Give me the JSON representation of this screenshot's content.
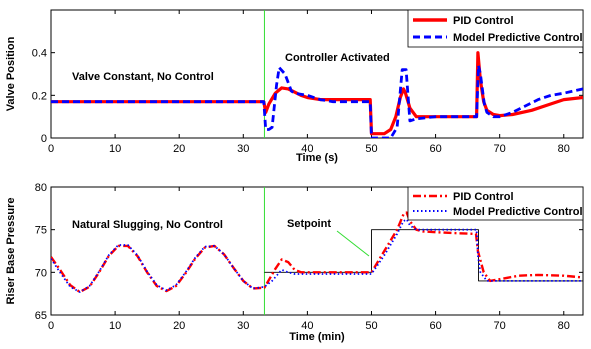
{
  "chart_data": [
    {
      "type": "line",
      "xlabel": "Time (s)",
      "ylabel": "Valve Position",
      "xlim": [
        0,
        83
      ],
      "ylim": [
        0,
        0.6
      ],
      "xticks": [
        0,
        10,
        20,
        30,
        40,
        50,
        60,
        70,
        80
      ],
      "yticks": [
        0,
        0.2,
        0.4
      ],
      "grid": false,
      "legend_position": "top-right",
      "series": [
        {
          "name": "PID Control",
          "color": "#ff0000",
          "style": "solid",
          "x": [
            0,
            33.2,
            33.5,
            34,
            35,
            36,
            37,
            38,
            39,
            40,
            42,
            44,
            46,
            48,
            49.8,
            50,
            52,
            53,
            53.8,
            54.5,
            55,
            55.3,
            56,
            57,
            58,
            60,
            62,
            64,
            66.4,
            66.6,
            67,
            67.5,
            68,
            69,
            70,
            72,
            75,
            78,
            80,
            83
          ],
          "y": [
            0.17,
            0.17,
            0.12,
            0.16,
            0.21,
            0.235,
            0.23,
            0.215,
            0.2,
            0.19,
            0.18,
            0.18,
            0.18,
            0.18,
            0.18,
            0.02,
            0.02,
            0.04,
            0.1,
            0.19,
            0.23,
            0.21,
            0.14,
            0.1,
            0.1,
            0.1,
            0.1,
            0.1,
            0.1,
            0.4,
            0.27,
            0.17,
            0.13,
            0.11,
            0.105,
            0.11,
            0.13,
            0.16,
            0.18,
            0.19
          ]
        },
        {
          "name": "Model Predictive Control",
          "color": "#0000ff",
          "style": "dashed",
          "x": [
            0,
            33.2,
            33.5,
            34,
            34.5,
            35.2,
            35.6,
            36.5,
            37.5,
            38,
            40,
            42,
            44,
            46,
            48,
            49.8,
            50,
            52,
            53,
            54,
            54.8,
            55.4,
            56,
            57,
            60,
            62,
            64,
            66.4,
            66.7,
            67,
            67.6,
            68,
            69,
            70,
            72,
            74,
            76,
            78,
            80,
            83
          ],
          "y": [
            0.17,
            0.17,
            0.04,
            0.04,
            0.05,
            0.25,
            0.33,
            0.3,
            0.22,
            0.21,
            0.2,
            0.18,
            0.17,
            0.17,
            0.17,
            0.17,
            0.0,
            0.0,
            0.0,
            0.05,
            0.32,
            0.32,
            0.08,
            0.09,
            0.1,
            0.1,
            0.1,
            0.1,
            0.34,
            0.3,
            0.16,
            0.12,
            0.1,
            0.1,
            0.12,
            0.15,
            0.18,
            0.2,
            0.21,
            0.23
          ]
        }
      ],
      "annotations": [
        "Valve Constant, No Control",
        "Controller Activated"
      ],
      "vline_x": 33.3
    },
    {
      "type": "line",
      "xlabel": "Time (min)",
      "ylabel": "Riser Base Pressure",
      "xlim": [
        0,
        83
      ],
      "ylim": [
        65,
        80
      ],
      "xticks": [
        0,
        10,
        20,
        30,
        40,
        50,
        60,
        70,
        80
      ],
      "yticks": [
        65,
        70,
        75,
        80
      ],
      "grid": false,
      "legend_position": "top-right",
      "series": [
        {
          "name": "PID Control",
          "color": "#ff0000",
          "style": "dashdot",
          "x": [
            0,
            1.5,
            3,
            4.5,
            6,
            7.5,
            9,
            10.5,
            12,
            13.5,
            15,
            16.5,
            18,
            19.5,
            21,
            22.5,
            24,
            25.5,
            27,
            28.5,
            30,
            31.5,
            33.3,
            35,
            36,
            37,
            38,
            39,
            40,
            42,
            45,
            48,
            50,
            52,
            54,
            55,
            55.5,
            56,
            57,
            58,
            60,
            63,
            66.3,
            66.6,
            67.5,
            68.5,
            70,
            73,
            76,
            80,
            83
          ],
          "y": [
            71.8,
            70.2,
            68.5,
            67.7,
            68.3,
            70.0,
            71.9,
            73.1,
            73.1,
            71.9,
            70.0,
            68.4,
            67.8,
            68.4,
            69.9,
            71.6,
            72.9,
            73.1,
            72.1,
            70.5,
            69.0,
            68.1,
            68.2,
            70.4,
            71.5,
            71.2,
            70.3,
            70.0,
            70.0,
            70.0,
            70.0,
            70.0,
            70.0,
            72.5,
            75.0,
            76.8,
            77.0,
            76.0,
            75.0,
            74.8,
            74.7,
            74.6,
            74.5,
            72.5,
            70.0,
            69.0,
            69.2,
            69.6,
            69.7,
            69.6,
            69.4
          ]
        },
        {
          "name": "Model Predictive Control",
          "color": "#0000ff",
          "style": "dotted",
          "x": [
            0,
            1.5,
            3,
            4.5,
            6,
            7.5,
            9,
            10.5,
            12,
            13.5,
            15,
            16.5,
            18,
            19.5,
            21,
            22.5,
            24,
            25.5,
            27,
            28.5,
            30,
            31.5,
            33.3,
            34.5,
            36,
            37,
            38,
            40,
            45,
            50,
            52,
            54,
            55,
            55.5,
            56,
            57,
            60,
            66.4,
            66.6,
            67,
            68,
            70,
            75,
            80,
            83
          ],
          "y": [
            71.6,
            69.9,
            68.3,
            67.7,
            68.4,
            70.1,
            72.0,
            73.2,
            73.2,
            72.0,
            70.1,
            68.5,
            67.9,
            68.5,
            70.0,
            71.7,
            73.0,
            73.1,
            72.1,
            70.5,
            69.0,
            68.1,
            68.3,
            69.0,
            70.3,
            70.0,
            69.8,
            69.8,
            69.8,
            69.8,
            72.0,
            74.5,
            76.0,
            76.2,
            75.5,
            75.0,
            75.0,
            75.0,
            72.0,
            70.0,
            69.0,
            69.0,
            69.0,
            69.0,
            69.0
          ]
        },
        {
          "name": "",
          "color": "#000000",
          "style": "thin",
          "x": [
            33.3,
            50,
            50,
            66.7,
            66.7,
            83
          ],
          "y": [
            70,
            70,
            75,
            75,
            69,
            69
          ]
        }
      ],
      "annotations": [
        "Natural Slugging, No Control",
        "Setpoint"
      ],
      "vline_x": 33.3
    }
  ]
}
